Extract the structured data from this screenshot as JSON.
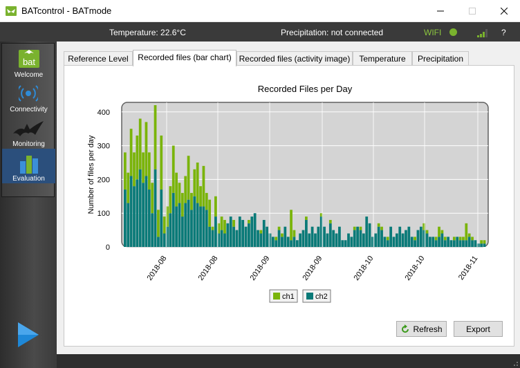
{
  "window": {
    "title": "BATcontrol - BATmode",
    "min_glyph": "—",
    "max_glyph": "☐",
    "close_glyph": "✕"
  },
  "status": {
    "temperature": "Temperature: 22.6°C",
    "precipitation": "Precipitation: not connected",
    "wifi": "WIFI",
    "help": "?",
    "wifi_color": "#7ab22e"
  },
  "sidebar": {
    "items": [
      {
        "label": "Welcome",
        "icon": "bat-logo-icon"
      },
      {
        "label": "Connectivity",
        "icon": "wireless-icon"
      },
      {
        "label": "Monitoring",
        "icon": "bat-silhouette-icon"
      },
      {
        "label": "Evaluation",
        "icon": "bar-chart-icon"
      }
    ],
    "logo_text": "bat",
    "active": "Evaluation"
  },
  "tabs": [
    {
      "label": "Reference Level",
      "active": false
    },
    {
      "label": "Recorded files (bar chart)",
      "active": true
    },
    {
      "label": "Recorded files (activity image)",
      "active": false
    },
    {
      "label": "Temperature",
      "active": false
    },
    {
      "label": "Precipitation",
      "active": false
    }
  ],
  "buttons": {
    "refresh": "Refresh",
    "export": "Export"
  },
  "chart_data": {
    "type": "bar",
    "title": "Recorded Files per Day",
    "ylabel": "Number of files per day",
    "xlabel": "",
    "ylim": [
      0,
      420
    ],
    "yticks": [
      0,
      100,
      200,
      300,
      400
    ],
    "xtick_labels": [
      "2018-08",
      "2018-08",
      "2018-09",
      "2018-09",
      "2018-10",
      "2018-10",
      "2018-11"
    ],
    "stacked": true,
    "grid": true,
    "legend_position": "bottom-center",
    "series": [
      {
        "name": "ch1",
        "color": "#7ab40a",
        "values": [
          110,
          90,
          140,
          100,
          130,
          150,
          90,
          160,
          110,
          90,
          190,
          80,
          160,
          50,
          60,
          80,
          140,
          100,
          60,
          70,
          80,
          130,
          50,
          80,
          120,
          60,
          120,
          50,
          80,
          10,
          60,
          30,
          40,
          40,
          0,
          0,
          20,
          0,
          0,
          0,
          0,
          10,
          0,
          0,
          0,
          10,
          0,
          0,
          0,
          0,
          10,
          10,
          10,
          0,
          0,
          90,
          20,
          0,
          0,
          0,
          10,
          0,
          0,
          0,
          0,
          10,
          0,
          0,
          10,
          0,
          0,
          0,
          0,
          0,
          0,
          0,
          10,
          0,
          10,
          0,
          0,
          0,
          0,
          0,
          10,
          10,
          0,
          10,
          0,
          0,
          0,
          0,
          0,
          0,
          0,
          0,
          10,
          0,
          0,
          20,
          10,
          0,
          0,
          10,
          30,
          10,
          10,
          0,
          0,
          10,
          0,
          10,
          10,
          50,
          10,
          10,
          0,
          0,
          10,
          10
        ]
      },
      {
        "name": "ch2",
        "color": "#0a7a78",
        "values": [
          170,
          130,
          210,
          180,
          200,
          230,
          190,
          210,
          170,
          100,
          230,
          30,
          170,
          40,
          60,
          100,
          160,
          120,
          130,
          90,
          130,
          140,
          110,
          150,
          130,
          120,
          120,
          110,
          60,
          50,
          90,
          40,
          50,
          40,
          70,
          90,
          60,
          50,
          90,
          80,
          60,
          70,
          90,
          100,
          50,
          40,
          80,
          60,
          40,
          30,
          20,
          50,
          30,
          60,
          30,
          20,
          30,
          20,
          40,
          50,
          80,
          40,
          60,
          40,
          60,
          90,
          60,
          40,
          70,
          50,
          40,
          60,
          20,
          20,
          40,
          30,
          50,
          60,
          50,
          40,
          90,
          70,
          30,
          40,
          60,
          50,
          30,
          20,
          60,
          30,
          40,
          60,
          40,
          50,
          60,
          30,
          20,
          50,
          60,
          50,
          40,
          30,
          30,
          20,
          30,
          40,
          20,
          30,
          20,
          20,
          30,
          20,
          20,
          20,
          30,
          20,
          20,
          10,
          10,
          10
        ]
      }
    ]
  }
}
